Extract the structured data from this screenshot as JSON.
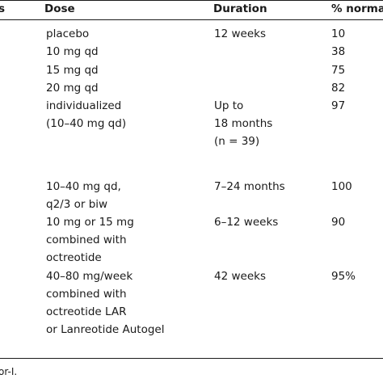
{
  "headers": {
    "col0": "s",
    "dose": "Dose",
    "duration": "Duration",
    "pct": "% norma"
  },
  "rows": [
    {
      "dose": [
        "placebo"
      ],
      "duration": [
        "12 weeks"
      ],
      "pct": [
        "10"
      ]
    },
    {
      "dose": [
        "10 mg qd"
      ],
      "duration": [],
      "pct": [
        "38"
      ]
    },
    {
      "dose": [
        "15 mg qd"
      ],
      "duration": [],
      "pct": [
        "75"
      ]
    },
    {
      "dose": [
        "20 mg qd"
      ],
      "duration": [],
      "pct": [
        "82"
      ]
    },
    {
      "dose": [
        "individualized",
        "(10–40 mg qd)"
      ],
      "duration": [
        "Up to",
        "18 months",
        "(n = 39)"
      ],
      "pct": [
        "97"
      ]
    },
    {
      "dose": [
        "10–40 mg qd,",
        "q2/3 or biw"
      ],
      "duration": [
        "7–24 months"
      ],
      "pct": [
        "100"
      ]
    },
    {
      "dose": [
        "10 mg or 15 mg",
        "combined with",
        "octreotide"
      ],
      "duration": [
        "6–12 weeks"
      ],
      "pct": [
        "90"
      ]
    },
    {
      "dose": [
        "40–80 mg/week",
        "combined with",
        "octreotide LAR",
        "or Lanreotide Autogel"
      ],
      "duration": [
        "42 weeks"
      ],
      "pct": [
        "95%"
      ]
    }
  ],
  "footnote": "or-I."
}
